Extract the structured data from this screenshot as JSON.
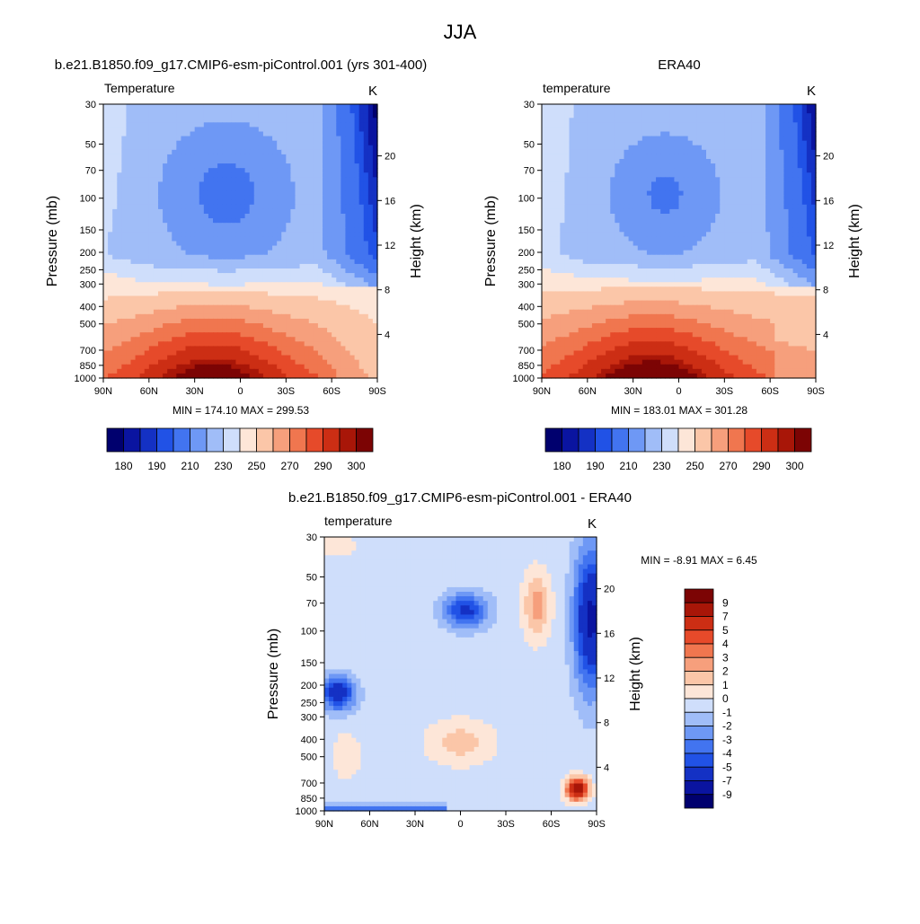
{
  "figure": {
    "title": "JJA"
  },
  "colors": {
    "temperature_levels": [
      "#00006e",
      "#0a14a0",
      "#1431c4",
      "#2152e6",
      "#4274f0",
      "#6e98f5",
      "#a0bdf8",
      "#cfdefb",
      "#fde6d8",
      "#fbc6a8",
      "#f69f7c",
      "#f0764f",
      "#e64a2a",
      "#cc2e14",
      "#a81608",
      "#7c0404"
    ],
    "difference_levels": [
      "#00006e",
      "#0a14a0",
      "#1431c4",
      "#2152e6",
      "#4274f0",
      "#6e98f5",
      "#a0bdf8",
      "#cfdefb",
      "#fde6d8",
      "#fbc6a8",
      "#f69f7c",
      "#f0764f",
      "#e64a2a",
      "#cc2e14",
      "#a81608",
      "#7c0404"
    ]
  },
  "chart_data": [
    {
      "id": "model",
      "type": "heatmap",
      "title": "b.e21.B1850.f09_g17.CMIP6-esm-piControl.001 (yrs 301-400)",
      "left_label": "Temperature",
      "units": "K",
      "ylabel": "Pressure (mb)",
      "y2label": "Height (km)",
      "x_ticks": [
        "90N",
        "60N",
        "30N",
        "0",
        "30S",
        "60S",
        "90S"
      ],
      "y_ticks": [
        "30",
        "50",
        "70",
        "100",
        "150",
        "200",
        "250",
        "300",
        "400",
        "500",
        "700",
        "850",
        "1000"
      ],
      "y2_ticks": [
        "20",
        "16",
        "12",
        "8",
        "4"
      ],
      "ylim": [
        1000,
        30
      ],
      "min": 174.1,
      "max": 299.53,
      "stats_text": "MIN = 174.10  MAX = 299.53",
      "colorbar_labels": [
        "180",
        "190",
        "210",
        "230",
        "250",
        "270",
        "290",
        "300"
      ],
      "contour_levels": [
        175,
        180,
        185,
        190,
        200,
        210,
        220,
        230,
        240,
        250,
        260,
        270,
        280,
        290,
        295,
        300
      ]
    },
    {
      "id": "obs",
      "type": "heatmap",
      "title": "ERA40",
      "left_label": "temperature",
      "units": "K",
      "ylabel": "Pressure (mb)",
      "y2label": "Height (km)",
      "x_ticks": [
        "90N",
        "60N",
        "30N",
        "0",
        "30S",
        "60S",
        "90S"
      ],
      "y_ticks": [
        "30",
        "50",
        "70",
        "100",
        "150",
        "200",
        "250",
        "300",
        "400",
        "500",
        "700",
        "850",
        "1000"
      ],
      "y2_ticks": [
        "20",
        "16",
        "12",
        "8",
        "4"
      ],
      "ylim": [
        1000,
        30
      ],
      "min": 183.01,
      "max": 301.28,
      "stats_text": "MIN = 183.01  MAX = 301.28",
      "colorbar_labels": [
        "180",
        "190",
        "210",
        "230",
        "250",
        "270",
        "290",
        "300"
      ],
      "contour_levels": [
        175,
        180,
        185,
        190,
        200,
        210,
        220,
        230,
        240,
        250,
        260,
        270,
        280,
        290,
        295,
        300
      ]
    },
    {
      "id": "diff",
      "type": "heatmap",
      "title": "b.e21.B1850.f09_g17.CMIP6-esm-piControl.001 - ERA40",
      "left_label": "temperature",
      "units": "K",
      "ylabel": "Pressure (mb)",
      "y2label": "Height (km)",
      "x_ticks": [
        "90N",
        "60N",
        "30N",
        "0",
        "30S",
        "60S",
        "90S"
      ],
      "y_ticks": [
        "30",
        "50",
        "70",
        "100",
        "150",
        "200",
        "250",
        "300",
        "400",
        "500",
        "700",
        "850",
        "1000"
      ],
      "y2_ticks": [
        "20",
        "16",
        "12",
        "8",
        "4"
      ],
      "ylim": [
        1000,
        30
      ],
      "min": -8.91,
      "max": 6.45,
      "stats_text": "MIN =  -8.91  MAX =   6.45",
      "colorbar_labels": [
        "9",
        "7",
        "5",
        "4",
        "3",
        "2",
        "1",
        "0",
        "-1",
        "-2",
        "-3",
        "-4",
        "-5",
        "-7",
        "-9"
      ],
      "contour_levels": [
        -9,
        -7,
        -5,
        -4,
        -3,
        -2,
        -1,
        0,
        1,
        2,
        3,
        4,
        5,
        7,
        9
      ]
    }
  ]
}
